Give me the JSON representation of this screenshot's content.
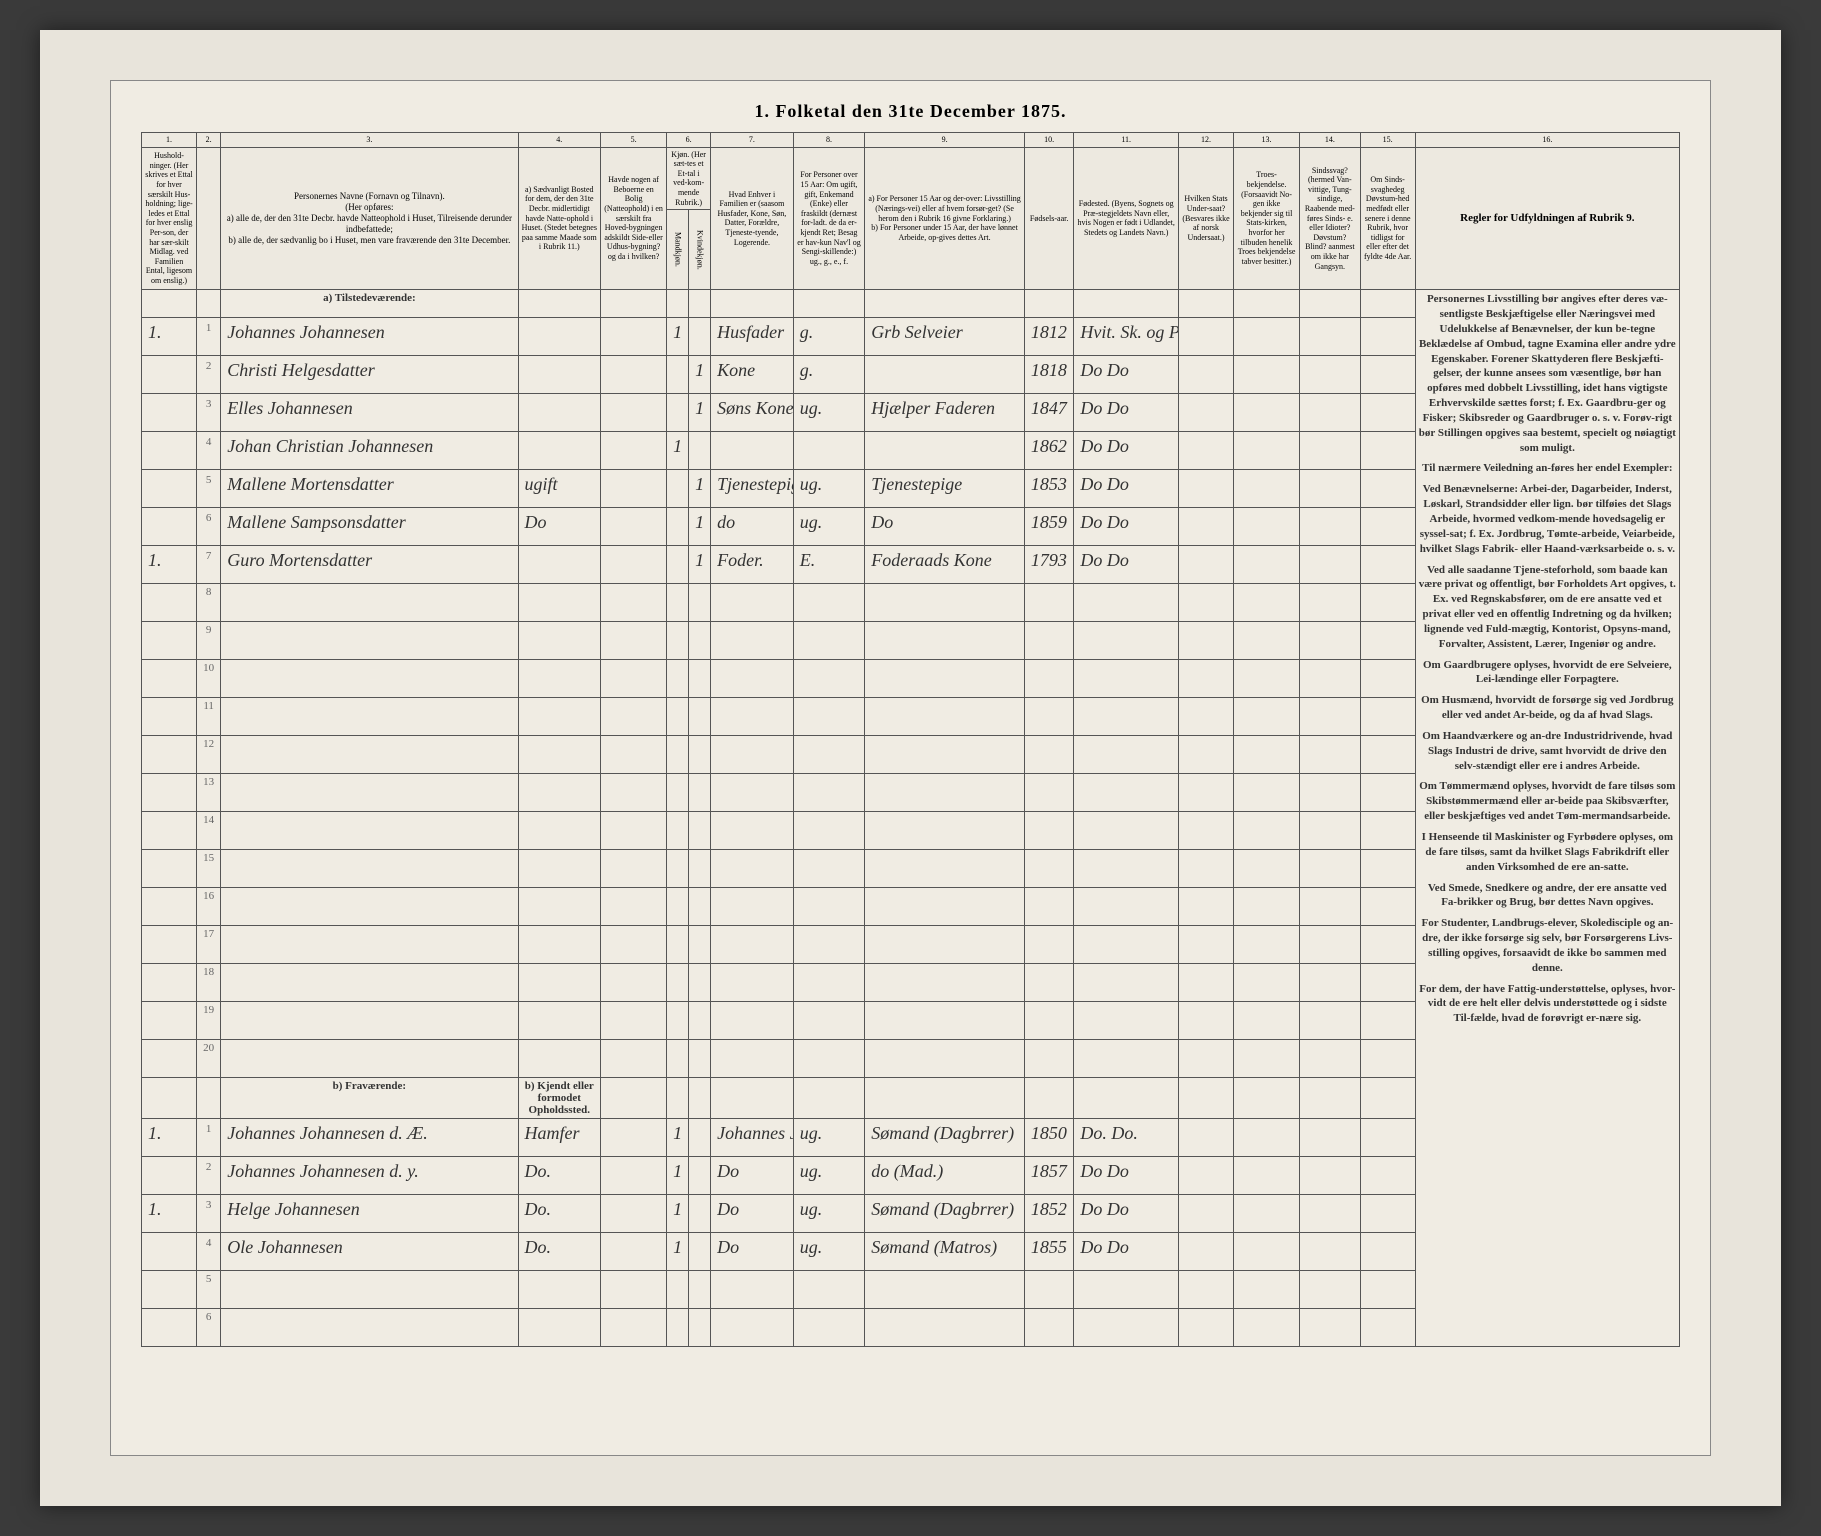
{
  "title": "1. Folketal den 31te December 1875.",
  "columns": {
    "nums": [
      "1.",
      "2.",
      "3.",
      "4.",
      "5.",
      "6.",
      "7.",
      "8.",
      "9.",
      "10.",
      "11.",
      "12.",
      "13.",
      "14.",
      "15.",
      "16."
    ],
    "h1": "Hushold-ninger. (Her skrives et Ettal for hver særskilt Hus-holdning; lige-ledes et Ettal for hver enslig Per-son, der har sær-skilt Midlag. ved Familien Ental, ligesom om enslig.)",
    "h3": "Personernes Navne (Fornavn og Tilnavn).\n(Her opføres:\na) alle de, der den 31te Decbr. havde Natteophold i Huset, Tilreisende derunder indbefattede;\nb) alle de, der sædvanlig bo i Huset, men vare fraværende den 31te December.",
    "h4": "a) Sædvanligt Bosted for dem, der den 31te Decbr. midlertidigt havde Natte-ophold i Huset. (Stedet betegnes paa samme Maade som i Rubrik 11.)",
    "h5": "Havde nogen af Beboerne en Bolig (Natteophold) i en særskilt fra Hoved-bygningen adskildt Side-eller Udhus-bygning? og da i hvilken?",
    "h6": "Kjøn. (Her sæt-tes et Et-tal i ved-kom-mende Rubrik.)",
    "h6a": "Mandkjøn.",
    "h6b": "Kvindekjøn.",
    "h7": "Hvad Enhver i Familien er (saasom Husfader, Kone, Søn, Datter, Forældre, Tjeneste-tyende, Logerende.",
    "h8": "For Personer over 15 Aar: Om ugift, gift, Enkemand (Enke) eller fraskildt (dernæst for-ladt. de da er-kjendt Ret; Besag er hav-kun Nav'l og Sengi-skillende:) ug., g., e., f.",
    "h9": "a) For Personer 15 Aar og der-over: Livsstilling (Nærings-vei) eller af hvem forsør-get? (Se herom den i Rubrik 16 givne Forklaring.)\nb) For Personer under 15 Aar, der have lønnet Arbeide, op-gives dettes Art.",
    "h10": "Fødsels-aar.",
    "h11": "Fødested.\n(Byens, Sognets og Præ-stegjeldets Navn eller, hvis Nogen er født i Udlandet, Stedets og Landets Navn.)",
    "h12": "Hvilken Stats Under-saat? (Besvares ikke af norsk Undersaat.)",
    "h13": "Troes-bekjendelse. (Forsaavidt No-gen ikke bekjender sig til Stats-kirken, hvorfor her tilbuden henelik Troes bekjendelse tabver besitter.)",
    "h14": "Sindssvag? (hermed Van-vittige, Tung-sindige, Raabende med-føres Sinds- e. eller Idioter? Døvstum? Blind? aanmest om ikke har Gangsyn.",
    "h15": "Om Sinds-svaghedeg Døvstum-hed medfødt eller senere i denne Rubrik, hvor tidligst for eller efter det fyldte 4de Aar.",
    "h16": "Regler for Udfyldningen af Rubrik 9."
  },
  "sections": {
    "present": "a) Tilstedeværende:",
    "absent": "b) Fraværende:",
    "absent_col4": "b) Kjendt eller formodet Opholdssted."
  },
  "present_rows": [
    {
      "hh": "1.",
      "n": "1",
      "name": "Johannes Johannesen",
      "c4": "",
      "c5": "",
      "m": "1",
      "f": "",
      "rel": "Husfader",
      "ms": "g.",
      "occ": "Grb Selveier",
      "yr": "1812",
      "bp": "Hvit. Sk. og Prstgjeld",
      "cit": "",
      "rel2": "",
      "c14": "",
      "c15": ""
    },
    {
      "hh": "",
      "n": "2",
      "name": "Christi Helgesdatter",
      "c4": "",
      "c5": "",
      "m": "",
      "f": "1",
      "rel": "Kone",
      "ms": "g.",
      "occ": "",
      "yr": "1818",
      "bp": "Do  Do",
      "cit": "",
      "rel2": "",
      "c14": "",
      "c15": ""
    },
    {
      "hh": "",
      "n": "3",
      "name": "Elles Johannesen",
      "c4": "",
      "c5": "",
      "m": "",
      "f": "1",
      "rel": "Søns Kone",
      "ms": "ug.",
      "occ": "Hjælper Faderen",
      "yr": "1847",
      "bp": "Do  Do",
      "cit": "",
      "rel2": "",
      "c14": "",
      "c15": ""
    },
    {
      "hh": "",
      "n": "4",
      "name": "Johan Christian Johannesen",
      "c4": "",
      "c5": "",
      "m": "1",
      "f": "",
      "rel": "",
      "ms": "",
      "occ": "",
      "yr": "1862",
      "bp": "Do  Do",
      "cit": "",
      "rel2": "",
      "c14": "",
      "c15": ""
    },
    {
      "hh": "",
      "n": "5",
      "name": "Mallene Mortensdatter",
      "c4": "ugift",
      "c5": "",
      "m": "",
      "f": "1",
      "rel": "Tjenestepige",
      "ms": "ug.",
      "occ": "Tjenestepige",
      "yr": "1853",
      "bp": "Do  Do",
      "cit": "",
      "rel2": "",
      "c14": "",
      "c15": ""
    },
    {
      "hh": "",
      "n": "6",
      "name": "Mallene Sampsonsdatter",
      "c4": "Do",
      "c5": "",
      "m": "",
      "f": "1",
      "rel": "do",
      "ms": "ug.",
      "occ": "Do",
      "yr": "1859",
      "bp": "Do  Do",
      "cit": "",
      "rel2": "",
      "c14": "",
      "c15": ""
    },
    {
      "hh": "1.",
      "n": "7",
      "name": "Guro Mortensdatter",
      "c4": "",
      "c5": "",
      "m": "",
      "f": "1",
      "rel": "Foder.",
      "ms": "E.",
      "occ": "Foderaads Kone",
      "yr": "1793",
      "bp": "Do  Do",
      "cit": "",
      "rel2": "",
      "c14": "",
      "c15": ""
    }
  ],
  "absent_rows": [
    {
      "hh": "1.",
      "n": "1",
      "name": "Johannes Johannesen d. Æ.",
      "c4": "Hamfer",
      "c5": "",
      "m": "1",
      "f": "",
      "rel": "Johannes Johannes's Søn",
      "ms": "ug.",
      "occ": "Sømand (Dagbrrer)",
      "yr": "1850",
      "bp": "Do.  Do.",
      "cit": "",
      "rel2": "",
      "c14": "",
      "c15": ""
    },
    {
      "hh": "",
      "n": "2",
      "name": "Johannes Johannesen d. y.",
      "c4": "Do.",
      "c5": "",
      "m": "1",
      "f": "",
      "rel": "Do",
      "ms": "ug.",
      "occ": "do  (Mad.)",
      "yr": "1857",
      "bp": "Do  Do",
      "cit": "",
      "rel2": "",
      "c14": "",
      "c15": ""
    },
    {
      "hh": "1.",
      "n": "3",
      "name": "Helge Johannesen",
      "c4": "Do.",
      "c5": "",
      "m": "1",
      "f": "",
      "rel": "Do",
      "ms": "ug.",
      "occ": "Sømand (Dagbrrer)",
      "yr": "1852",
      "bp": "Do  Do",
      "cit": "",
      "rel2": "",
      "c14": "",
      "c15": ""
    },
    {
      "hh": "",
      "n": "4",
      "name": "Ole Johannesen",
      "c4": "Do.",
      "c5": "",
      "m": "1",
      "f": "",
      "rel": "Do",
      "ms": "ug.",
      "occ": "Sømand (Matros)",
      "yr": "1855",
      "bp": "Do  Do",
      "cit": "",
      "rel2": "",
      "c14": "",
      "c15": ""
    }
  ],
  "instructions": [
    "Personernes Livsstilling bør angives efter deres væ-sentligste Beskjæftigelse eller Næringsvei med Udelukkelse af Benævnelser, der kun be-tegne Beklædelse af Ombud, tagne Examina eller andre ydre Egenskaber. Forener Skattyderen flere Beskjæfti-gelser, der kunne ansees som væsentlige, bør han opføres med dobbelt Livsstilling, idet hans vigtigste Erhvervskilde sættes forst; f. Ex. Gaardbru-ger og Fisker; Skibsreder og Gaardbruger o. s. v. Forøv-rigt bør Stillingen opgives saa bestemt, specielt og nøiagtigt som muligt.",
    "Til nærmere Veiledning an-føres her endel Exempler:",
    "Ved Benævnelserne: Arbei-der, Dagarbeider, Inderst, Løskarl, Strandsidder eller lign. bør tilføies det Slags Arbeide, hvormed vedkom-mende hovedsagelig er syssel-sat; f. Ex. Jordbrug, Tømte-arbeide, Veiarbeide, hvilket Slags Fabrik- eller Haand-værksarbeide o. s. v.",
    "Ved alle saadanne Tjene-steforhold, som baade kan være privat og offentligt, bør Forholdets Art opgives, t. Ex. ved Regnskabsfører, om de ere ansatte ved et privat eller ved en offentlig Indretning og da hvilken; lignende ved Fuld-mægtig, Kontorist, Opsyns-mand, Forvalter, Assistent, Lærer, Ingeniør og andre.",
    "Om Gaardbrugere oplyses, hvorvidt de ere Selveiere, Lei-lændinge eller Forpagtere.",
    "Om Husmænd, hvorvidt de forsørge sig ved Jordbrug eller ved andet Ar-beide, og da af hvad Slags.",
    "Om Haandværkere og an-dre Industridrivende, hvad Slags Industri de drive, samt hvorvidt de drive den selv-stændigt eller ere i andres Arbeide.",
    "Om Tømmermænd oplyses, hvorvidt de fare tilsøs som Skibstømmermænd eller ar-beide paa Skibsværfter, eller beskjæftiges ved andet Tøm-mermandsarbeide.",
    "I Henseende til Maskinister og Fyrbødere oplyses, om de fare tilsøs, samt da hvilket Slags Fabrikdrift eller anden Virksomhed de ere an-satte.",
    "Ved Smede, Snedkere og andre, der ere ansatte ved Fa-brikker og Brug, bør dettes Navn opgives.",
    "For Studenter, Landbrugs-elever, Skoledisciple og an-dre, der ikke forsørge sig selv, bør Forsørgerens Livs-stilling opgives, forsaavidt de ikke bo sammen med denne.",
    "For dem, der have Fattig-understøttelse, oplyses, hvor-vidt de ere helt eller delvis understøttede og i sidste Til-fælde, hvad de forøvrigt er-nære sig."
  ]
}
